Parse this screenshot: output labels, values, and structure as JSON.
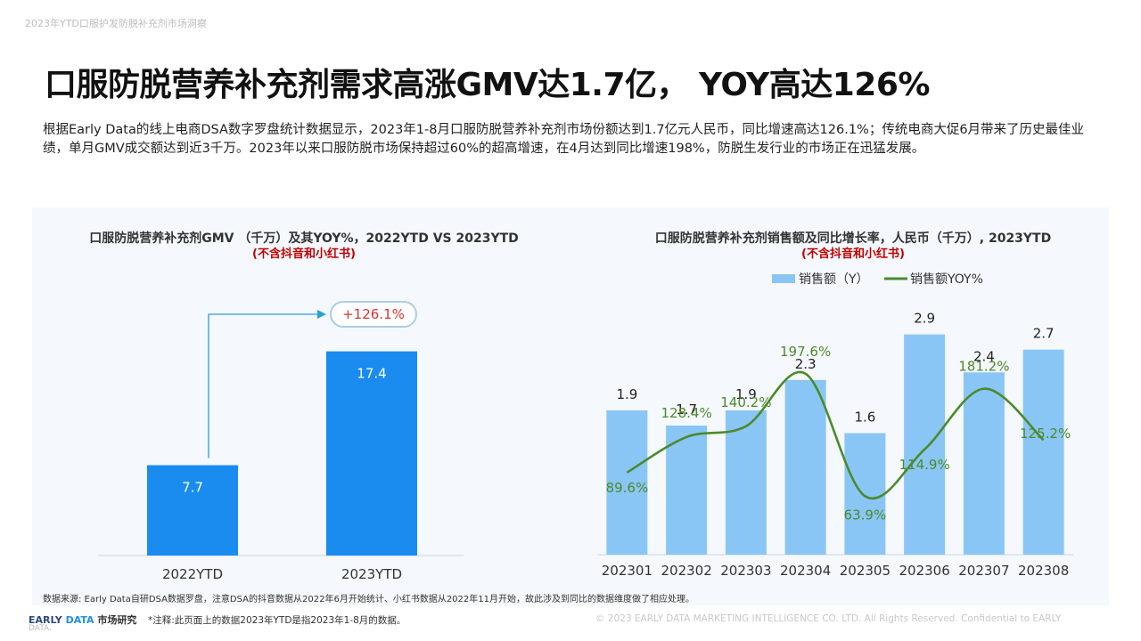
{
  "header": {
    "top_label": "2023年YTD口服护发防脱补充剂市场洞察",
    "title": "口服防脱营养补充剂需求高涨GMV达1.7亿，  YOY高达126%",
    "description": "根据Early  Data的线上电商DSA数字罗盘统计数据显示，2023年1-8月口服防脱营养补充剂市场份额达到1.7亿元人民币，同比增速高达126.1%；传统电商大促6月带来了历史最佳业绩，单月GMV成交额达到近3千万。2023年以来口服防脱市场保持超过60%的超高增速，在4月达到同比增速198%，防脱生发行业的市场正在迅猛发展。"
  },
  "chart_data": [
    {
      "type": "bar",
      "title": "口服防脱营养补充剂GMV  （千万）及其YOY%，2022YTD VS 2023YTD",
      "note": "(不含抖音和小红书)",
      "categories": [
        "2022YTD",
        "2023YTD"
      ],
      "values": [
        7.7,
        17.4
      ],
      "value_labels": [
        "7.7",
        "17.4"
      ],
      "growth_label": "+126.1%",
      "bar_color": "#1a8cf0",
      "ylim": [
        0,
        22
      ]
    },
    {
      "type": "bar+line",
      "title": "口服防脱营养补充剂销售额及同比增长率，人民币（千万）, 2023YTD",
      "note": "(不含抖音和小红书)",
      "categories": [
        "202301",
        "202302",
        "202303",
        "202304",
        "202305",
        "202306",
        "202307",
        "202308"
      ],
      "series": [
        {
          "name": "销售额（Y）",
          "type": "bar",
          "color": "#8ac6f5",
          "values": [
            1.9,
            1.7,
            1.9,
            2.3,
            1.6,
            2.9,
            2.4,
            2.7
          ],
          "labels": [
            "1.9",
            "1.7",
            "1.9",
            "2.3",
            "1.6",
            "2.9",
            "2.4",
            "2.7"
          ]
        },
        {
          "name": "销售额YOY%",
          "type": "line",
          "color": "#4c8a2b",
          "values": [
            89.6,
            128.4,
            140.2,
            197.6,
            63.9,
            114.9,
            181.2,
            125.2
          ],
          "labels": [
            "89.6%",
            "128.4%",
            "140.2%",
            "197.6%",
            "63.9%",
            "114.9%",
            "181.2%",
            "125.2%"
          ]
        }
      ],
      "bar_ylim": [
        0,
        3.4
      ],
      "line_ylim": [
        0,
        280
      ],
      "legend_position": "top"
    }
  ],
  "footer": {
    "source": "数据来源: Early Data自研DSA数据罗盘，注意DSA的抖音数据从2022年6月开始统计、小红书数据从2022年11月开始，故此涉及到同比的数据维度做了相应处理。",
    "brand_part1": "EARLY",
    "brand_part2": "DATA",
    "brand_part3": "市场研究",
    "brand_sub": "DATA.",
    "footnote": "*注释:此页面上的数据2023年YTD是指2023年1-8月的数据。",
    "copyright": "© 2023 EARLY DATA MARKETING INTELLIGENCE CO. LTD. All Rights Reserved. Confidential to EARLY"
  }
}
